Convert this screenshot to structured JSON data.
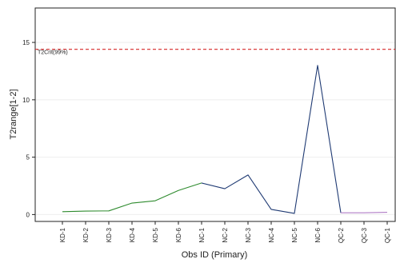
{
  "chart_data": {
    "type": "line",
    "title": "",
    "xlabel": "Obs ID (Primary)",
    "ylabel": "T2range[1-2]",
    "ylim": [
      -0.6,
      18
    ],
    "yticks": [
      0,
      5,
      10,
      15
    ],
    "grid": true,
    "legend": "none",
    "categories": [
      "KD-1",
      "KD-2",
      "KD-3",
      "KD-4",
      "KD-5",
      "KD-6",
      "NC-1",
      "NC-2",
      "NC-3",
      "NC-4",
      "NC-5",
      "NC-6",
      "QC-2",
      "QC-3",
      "QC-1"
    ],
    "series": [
      {
        "color": "#2e8b2e",
        "x": [
          "KD-1",
          "KD-2",
          "KD-3",
          "KD-4",
          "KD-5",
          "KD-6",
          "NC-1"
        ],
        "values": [
          0.25,
          0.3,
          0.32,
          1.0,
          1.2,
          2.1,
          2.75
        ]
      },
      {
        "color": "#1f3a73",
        "x": [
          "NC-1",
          "NC-2",
          "NC-3",
          "NC-4",
          "NC-5",
          "NC-6",
          "QC-2"
        ],
        "values": [
          2.75,
          2.25,
          3.45,
          0.45,
          0.1,
          13.0,
          0.15
        ]
      },
      {
        "color": "#b07cc6",
        "x": [
          "QC-2",
          "QC-3",
          "QC-1"
        ],
        "values": [
          0.15,
          0.15,
          0.2
        ]
      }
    ],
    "reference_lines": [
      {
        "label": "T2Crit(99%)",
        "value": 14.4,
        "color": "#d62728",
        "style": "dashed"
      }
    ]
  }
}
